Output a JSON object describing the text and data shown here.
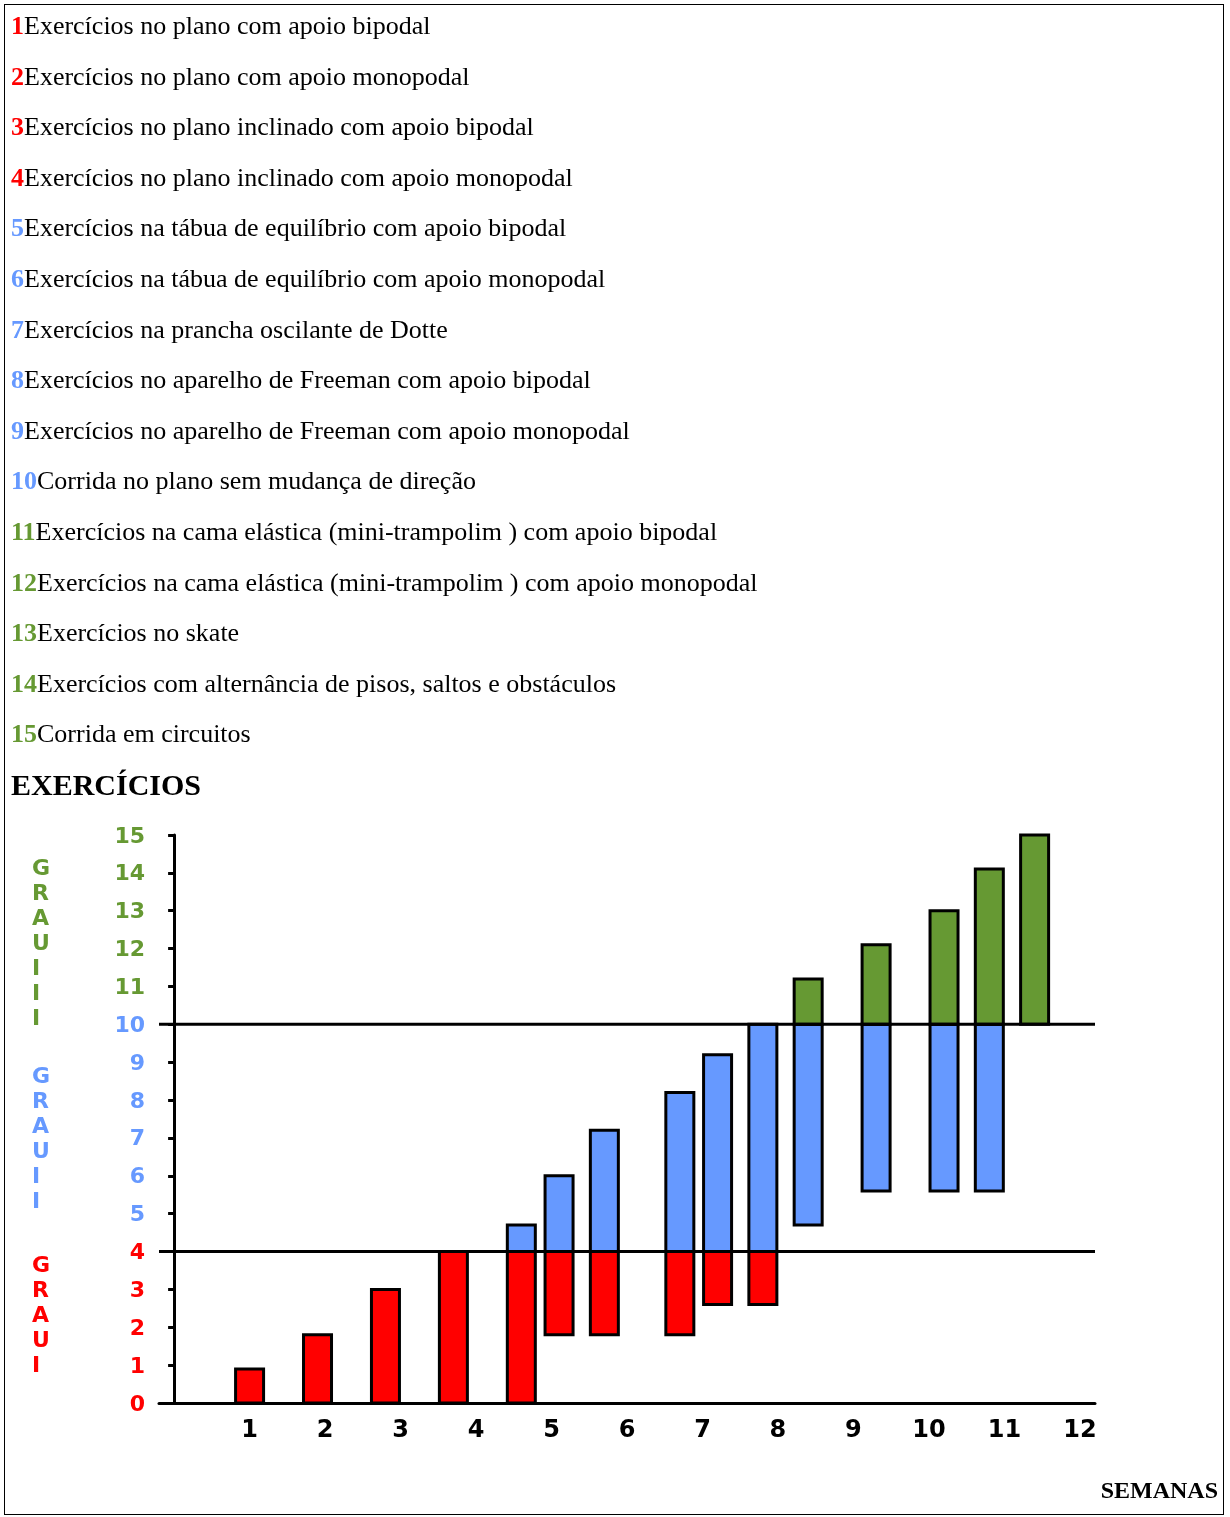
{
  "chart_data": {
    "type": "bar",
    "title": "EXERCÍCIOS",
    "xlabel": "SEMANAS",
    "annotations": [
      "1Exercícios no plano com apoio bipodal",
      "2Exercícios no plano com apoio monopodal",
      "3Exercícios no plano inclinado com apoio bipodal",
      "4Exercícios no plano inclinado com apoio monopodal",
      "5Exercícios na tábua de equilíbrio com apoio bipodal",
      "6Exercícios na tábua de equilíbrio com apoio monopodal",
      "7Exercícios na prancha oscilante de Dotte",
      "8Exercícios no aparelho de Freeman com apoio bipodal",
      "9Exercícios no aparelho de Freeman com apoio monopodal",
      "10Corrida no plano sem mudança de direção",
      "11Exercícios na cama elástica (mini-trampolim ) com apoio bipodal",
      "12Exercícios na cama elástica (mini-trampolim ) com apoio monopodal",
      "13Exercícios no skate",
      "14Exercícios com alternância de pisos, saltos e obstáculos",
      "15Corrida em circuitos"
    ],
    "x": [
      1.0,
      1.9,
      2.8,
      3.7,
      4.6,
      5.1,
      5.7,
      6.7,
      7.2,
      7.8,
      8.4,
      9.3,
      10.2,
      10.8,
      11.4
    ],
    "series": [
      {
        "name": "GRAU I",
        "color": "#ff0000",
        "base": [
          0,
          0,
          0,
          0,
          0,
          1.8,
          1.8,
          1.8,
          2.6,
          2.6,
          null,
          null,
          null,
          null,
          null
        ],
        "values": [
          0.9,
          1.8,
          3,
          4,
          4,
          2.2,
          2.2,
          2.2,
          1.4,
          1.4,
          null,
          null,
          null,
          null,
          null
        ]
      },
      {
        "name": "GRAU II",
        "color": "#6699ff",
        "base": [
          null,
          null,
          null,
          null,
          4,
          4,
          4,
          4,
          4,
          4,
          4.7,
          5.6,
          5.6,
          5.6,
          null
        ],
        "values": [
          null,
          null,
          null,
          null,
          0.7,
          2,
          3.2,
          4.2,
          5.2,
          6,
          5.3,
          4.4,
          4.4,
          4.4,
          null
        ]
      },
      {
        "name": "GRAU III",
        "color": "#669933",
        "base": [
          null,
          null,
          null,
          null,
          null,
          null,
          null,
          null,
          null,
          null,
          10,
          10,
          10,
          10,
          10
        ],
        "values": [
          null,
          null,
          null,
          null,
          null,
          null,
          null,
          null,
          null,
          null,
          1.2,
          2.1,
          3,
          4.1,
          5
        ]
      }
    ],
    "xlim": [
      -0.2,
      12.2
    ],
    "xticks": [
      1,
      2,
      3,
      4,
      5,
      6,
      7,
      8,
      9,
      10,
      11,
      12
    ],
    "ylim": [
      0,
      15
    ],
    "yticks": [
      0,
      1,
      2,
      3,
      4,
      5,
      6,
      7,
      8,
      9,
      10,
      11,
      12,
      13,
      14,
      15
    ],
    "ref_lines": [
      {
        "axis": "y",
        "value": 4,
        "color": "#000000"
      },
      {
        "axis": "y",
        "value": 10,
        "color": "#000000"
      }
    ],
    "grid": false,
    "legend": false
  }
}
